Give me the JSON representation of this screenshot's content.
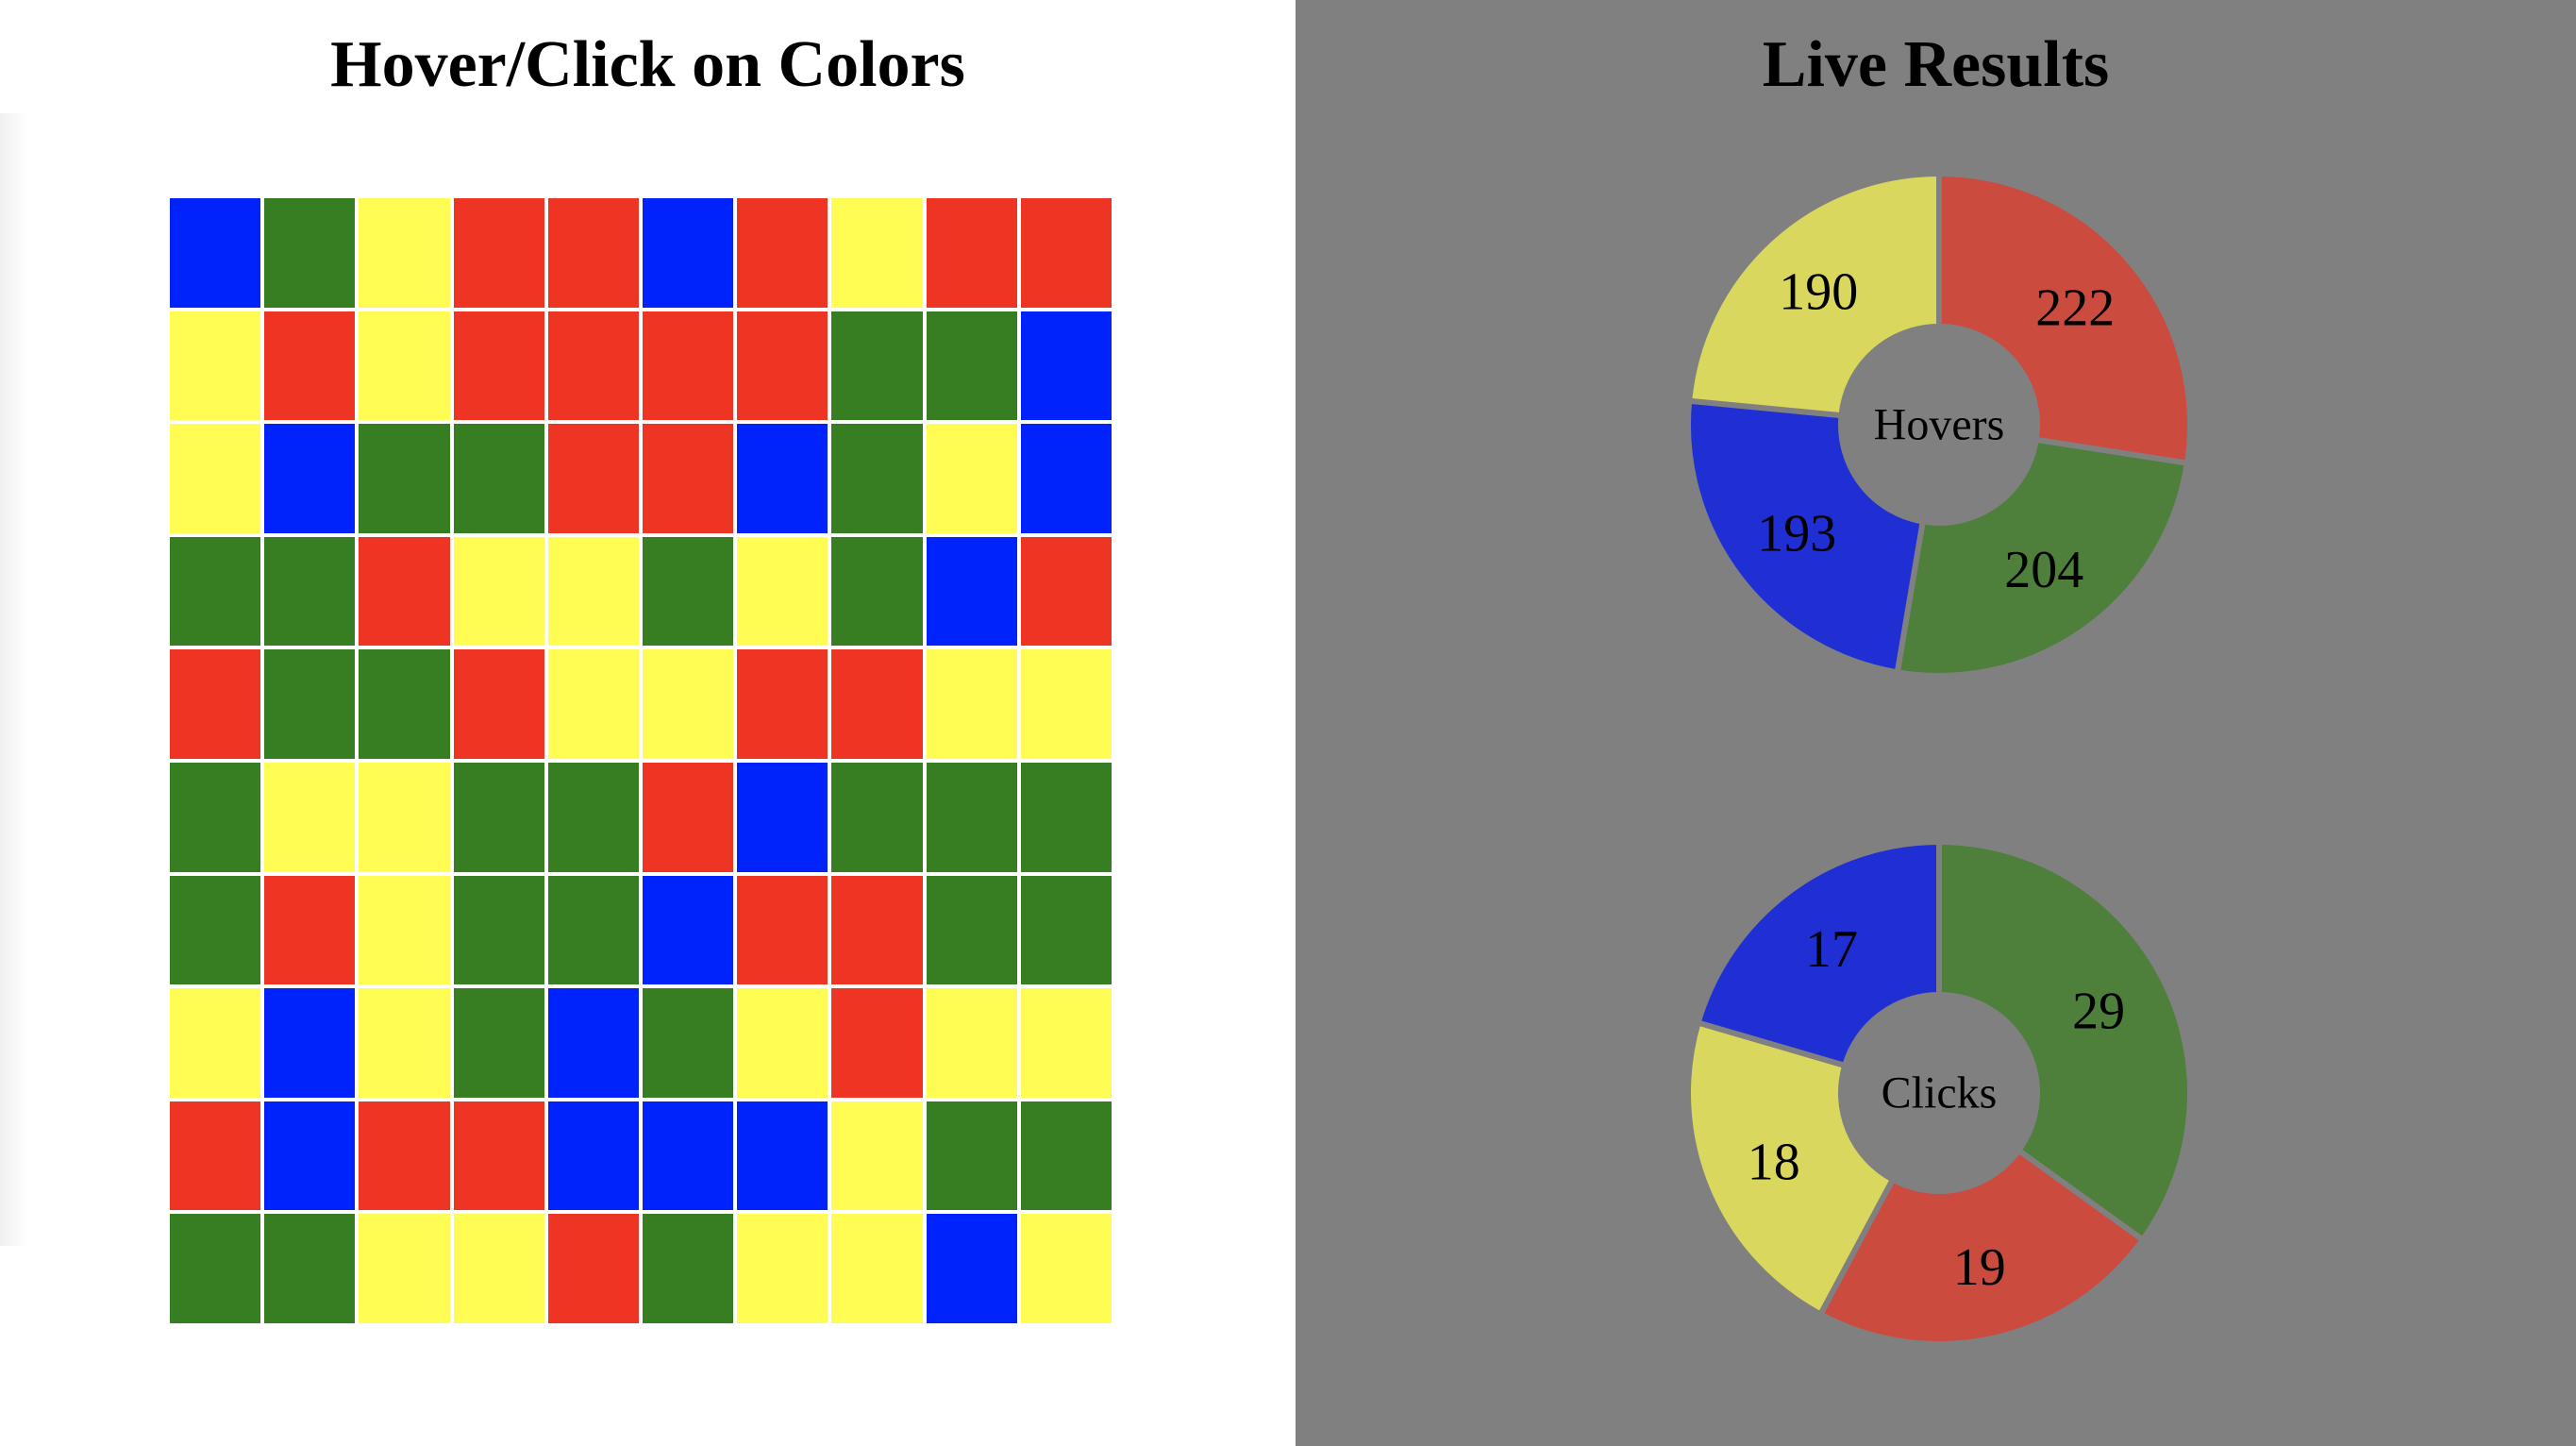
{
  "left": {
    "title": "Hover/Click on Colors"
  },
  "right": {
    "title": "Live Results"
  },
  "colors": {
    "grid": {
      "red": "#ee3524",
      "green": "#377d22",
      "yellow": "#fffd54",
      "blue": "#0023fb"
    },
    "chart": {
      "red": "#cb4b3f",
      "green": "#4e7f3b",
      "yellow": "#d9d75e",
      "blue": "#1f2fd3"
    },
    "panel_background": "#808080"
  },
  "grid": [
    [
      "blue",
      "green",
      "yellow",
      "red",
      "red",
      "blue",
      "red",
      "yellow",
      "red",
      "red"
    ],
    [
      "yellow",
      "red",
      "yellow",
      "red",
      "red",
      "red",
      "red",
      "green",
      "green",
      "blue"
    ],
    [
      "yellow",
      "blue",
      "green",
      "green",
      "red",
      "red",
      "blue",
      "green",
      "yellow",
      "blue"
    ],
    [
      "green",
      "green",
      "red",
      "yellow",
      "yellow",
      "green",
      "yellow",
      "green",
      "blue",
      "red"
    ],
    [
      "red",
      "green",
      "green",
      "red",
      "yellow",
      "yellow",
      "red",
      "red",
      "yellow",
      "yellow"
    ],
    [
      "green",
      "yellow",
      "yellow",
      "green",
      "green",
      "red",
      "blue",
      "green",
      "green",
      "green"
    ],
    [
      "green",
      "red",
      "yellow",
      "green",
      "green",
      "blue",
      "red",
      "red",
      "green",
      "green"
    ],
    [
      "yellow",
      "blue",
      "yellow",
      "green",
      "blue",
      "green",
      "yellow",
      "red",
      "yellow",
      "yellow"
    ],
    [
      "red",
      "blue",
      "red",
      "red",
      "blue",
      "blue",
      "blue",
      "yellow",
      "green",
      "green"
    ],
    [
      "green",
      "green",
      "yellow",
      "yellow",
      "red",
      "green",
      "yellow",
      "yellow",
      "blue",
      "yellow"
    ]
  ],
  "chart_data": [
    {
      "type": "pie",
      "center_label": "Hovers",
      "slices": [
        {
          "color": "red",
          "value": 222
        },
        {
          "color": "green",
          "value": 204
        },
        {
          "color": "blue",
          "value": 193
        },
        {
          "color": "yellow",
          "value": 190
        }
      ]
    },
    {
      "type": "pie",
      "center_label": "Clicks",
      "slices": [
        {
          "color": "green",
          "value": 29
        },
        {
          "color": "red",
          "value": 19
        },
        {
          "color": "yellow",
          "value": 18
        },
        {
          "color": "blue",
          "value": 17
        }
      ]
    }
  ]
}
